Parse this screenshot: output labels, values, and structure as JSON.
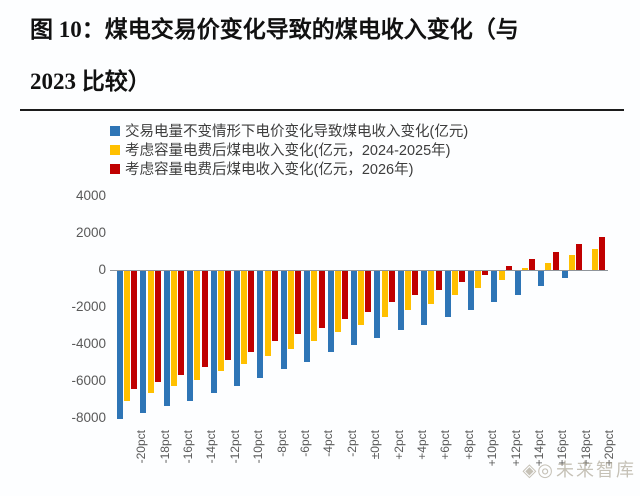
{
  "page": {
    "title_line1": "图 10：煤电交易价变化导致的煤电收入变化（与",
    "title_line2": "2023 比较）"
  },
  "watermark": {
    "icons": "◈◎",
    "text": "未来智库"
  },
  "colors": {
    "blue": "#2E75B6",
    "gold": "#FFC000",
    "dark_red": "#C00000",
    "axis_text": "#595959",
    "axis_line": "#8F959B"
  },
  "chart_data": {
    "type": "bar",
    "title": "图 10：煤电交易价变化导致的煤电收入变化（与 2023 比较）",
    "xlabel": "",
    "ylabel": "",
    "ylim": [
      -8000,
      4000
    ],
    "yticks": [
      4000,
      2000,
      0,
      -2000,
      -4000,
      -6000,
      -8000
    ],
    "grid": false,
    "legend_position": "top-left",
    "categories": [
      "-20pct",
      "-18pct",
      "-16pct",
      "-14pct",
      "-12pct",
      "-10pct",
      "-8pct",
      "-6pct",
      "-4pct",
      "-2pct",
      "±0pct",
      "+2pct",
      "+4pct",
      "+6pct",
      "+8pct",
      "+10pct",
      "+12pct",
      "+14pct",
      "+16pct",
      "+18pct",
      "+20pct"
    ],
    "series": [
      {
        "name": "交易电量不变情形下电价变化导致煤电收入变化(亿元)",
        "color": "#2E75B6",
        "values": [
          -8000,
          -7700,
          -7300,
          -7000,
          -6600,
          -6200,
          -5800,
          -5300,
          -4900,
          -4400,
          -4000,
          -3600,
          -3200,
          -2900,
          -2500,
          -2100,
          -1700,
          -1300,
          -800,
          -400,
          0
        ]
      },
      {
        "name": "考虑容量电费后煤电收入变化(亿元，2024-2025年)",
        "color": "#FFC000",
        "values": [
          -7000,
          -6600,
          -6200,
          -5900,
          -5400,
          -5000,
          -4600,
          -4200,
          -3800,
          -3300,
          -2900,
          -2500,
          -2100,
          -1800,
          -1300,
          -900,
          -500,
          100,
          400,
          800,
          1150
        ]
      },
      {
        "name": "考虑容量电费后煤电收入变化(亿元，2026年)",
        "color": "#C00000",
        "values": [
          -6400,
          -6000,
          -5600,
          -5200,
          -4800,
          -4400,
          -3800,
          -3400,
          -3100,
          -2600,
          -2200,
          -1700,
          -1300,
          -1000,
          -600,
          -200,
          200,
          600,
          1000,
          1400,
          1800
        ]
      }
    ]
  }
}
